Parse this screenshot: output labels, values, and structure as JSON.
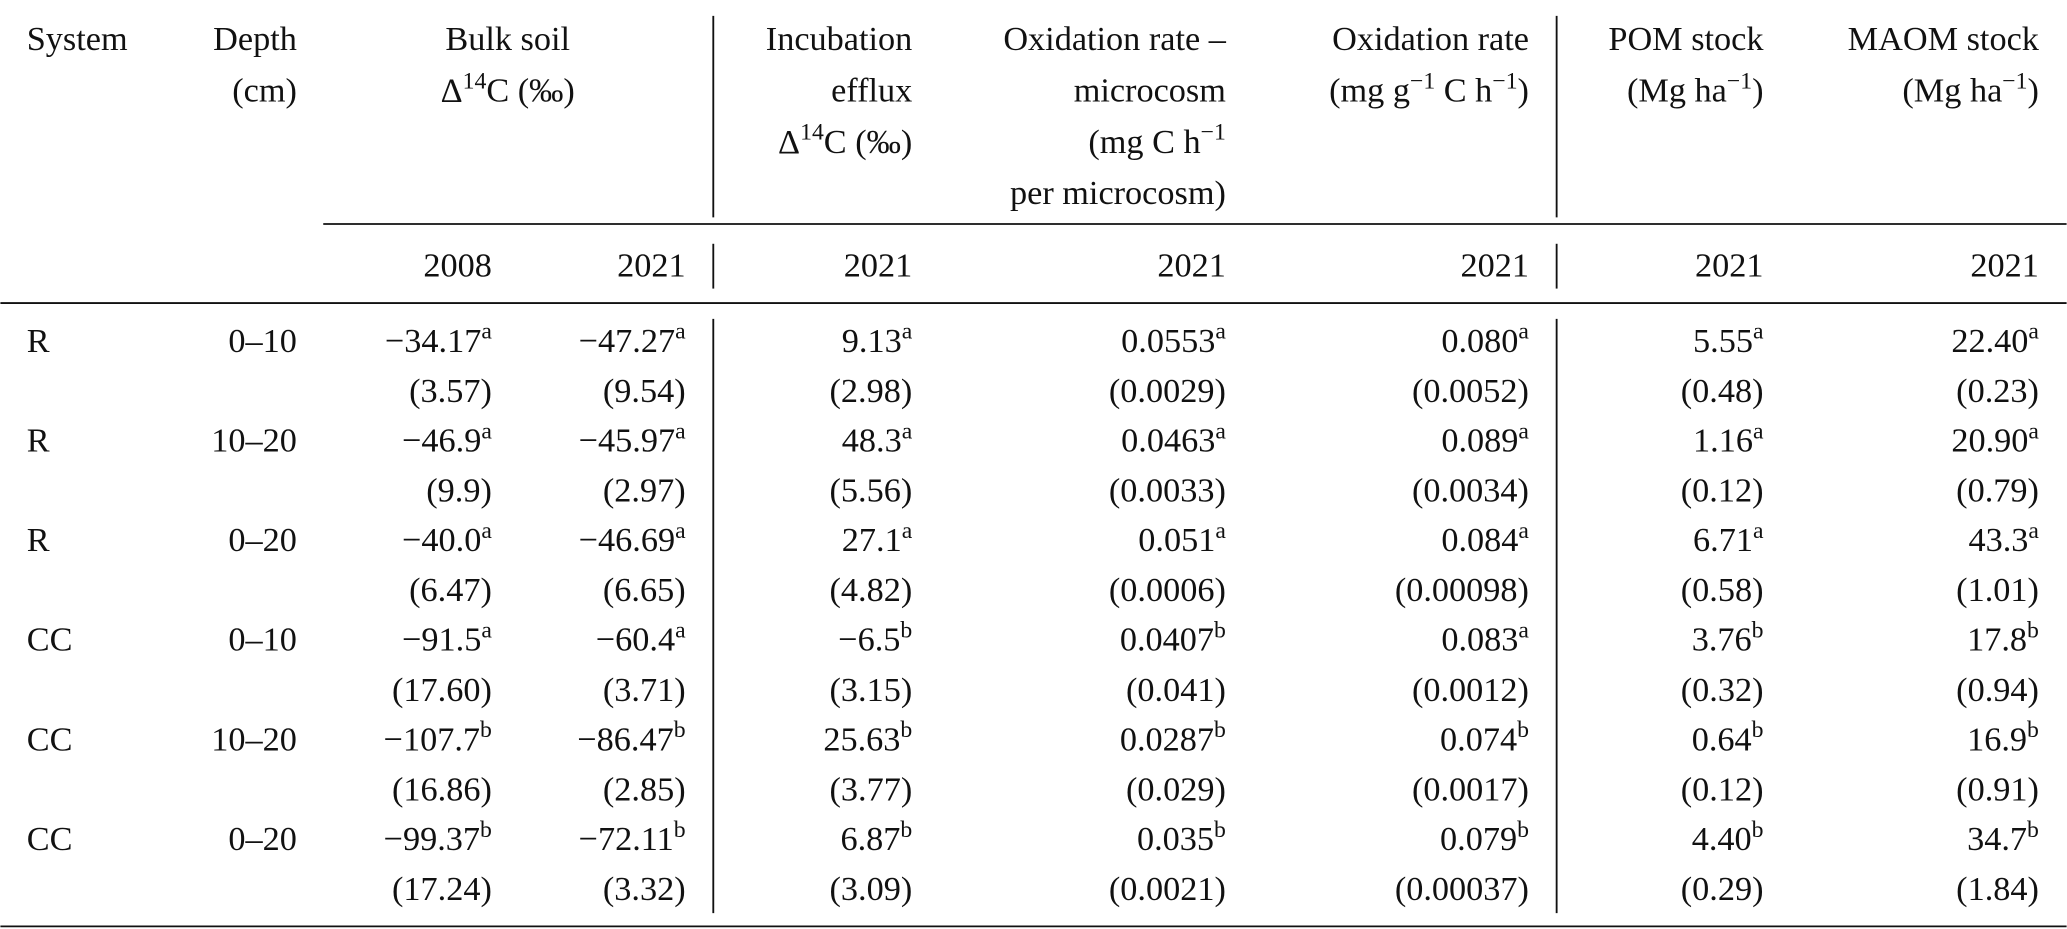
{
  "table": {
    "columns": [
      {
        "lines": [
          [
            "System"
          ]
        ]
      },
      {
        "lines": [
          [
            "Depth"
          ],
          [
            "(cm)"
          ]
        ]
      },
      {
        "lines": [
          [
            "Bulk soil"
          ],
          [
            "Δ",
            {
              "sup": "14"
            },
            "C (‰)"
          ]
        ]
      },
      {
        "lines": [
          [
            "Incubation"
          ],
          [
            "efflux"
          ],
          [
            "Δ",
            {
              "sup": "14"
            },
            "C (‰)"
          ]
        ]
      },
      {
        "lines": [
          [
            "Oxidation rate –"
          ],
          [
            "microcosm"
          ],
          [
            "(mg C h",
            {
              "sup": "−1"
            }
          ],
          [
            "per microcosm)"
          ]
        ]
      },
      {
        "lines": [
          [
            "Oxidation rate"
          ],
          [
            "(mg g",
            {
              "sup": "−1"
            },
            " C h",
            {
              "sup": "−1"
            },
            ")"
          ]
        ]
      },
      {
        "lines": [
          [
            "POM stock"
          ],
          [
            "(Mg ha",
            {
              "sup": "−1"
            },
            ")"
          ]
        ]
      },
      {
        "lines": [
          [
            "MAOM stock"
          ],
          [
            "(Mg ha",
            {
              "sup": "−1"
            },
            ")"
          ]
        ]
      }
    ],
    "years": [
      "2008",
      "2021",
      "2021",
      "2021",
      "2021",
      "2021",
      "2021"
    ],
    "rows": [
      {
        "system": "R",
        "depth": "0–10",
        "cells": [
          {
            "value": "−34.17",
            "sup": "a",
            "se": "(3.57)"
          },
          {
            "value": "−47.27",
            "sup": "a",
            "se": "(9.54)"
          },
          {
            "value": "9.13",
            "sup": "a",
            "se": "(2.98)"
          },
          {
            "value": "0.0553",
            "sup": "a",
            "se": "(0.0029)"
          },
          {
            "value": "0.080",
            "sup": "a",
            "se": "(0.0052)"
          },
          {
            "value": "5.55",
            "sup": "a",
            "se": "(0.48)"
          },
          {
            "value": "22.40",
            "sup": "a",
            "se": "(0.23)"
          }
        ]
      },
      {
        "system": "R",
        "depth": "10–20",
        "cells": [
          {
            "value": "−46.9",
            "sup": "a",
            "se": "(9.9)"
          },
          {
            "value": "−45.97",
            "sup": "a",
            "se": "(2.97)"
          },
          {
            "value": "48.3",
            "sup": "a",
            "se": "(5.56)"
          },
          {
            "value": "0.0463",
            "sup": "a",
            "se": "(0.0033)"
          },
          {
            "value": "0.089",
            "sup": "a",
            "se": "(0.0034)"
          },
          {
            "value": "1.16",
            "sup": "a",
            "se": "(0.12)"
          },
          {
            "value": "20.90",
            "sup": "a",
            "se": "(0.79)"
          }
        ]
      },
      {
        "system": "R",
        "depth": "0–20",
        "cells": [
          {
            "value": "−40.0",
            "sup": "a",
            "se": "(6.47)"
          },
          {
            "value": "−46.69",
            "sup": "a",
            "se": "(6.65)"
          },
          {
            "value": "27.1",
            "sup": "a",
            "se": "(4.82)"
          },
          {
            "value": "0.051",
            "sup": "a",
            "se": "(0.0006)"
          },
          {
            "value": "0.084",
            "sup": "a",
            "se": "(0.00098)"
          },
          {
            "value": "6.71",
            "sup": "a",
            "se": "(0.58)"
          },
          {
            "value": "43.3",
            "sup": "a",
            "se": "(1.01)"
          }
        ]
      },
      {
        "system": "CC",
        "depth": "0–10",
        "cells": [
          {
            "value": "−91.5",
            "sup": "a",
            "se": "(17.60)"
          },
          {
            "value": "−60.4",
            "sup": "a",
            "se": "(3.71)"
          },
          {
            "value": "−6.5",
            "sup": "b",
            "se": "(3.15)"
          },
          {
            "value": "0.0407",
            "sup": "b",
            "se": "(0.041)"
          },
          {
            "value": "0.083",
            "sup": "a",
            "se": "(0.0012)"
          },
          {
            "value": "3.76",
            "sup": "b",
            "se": "(0.32)"
          },
          {
            "value": "17.8",
            "sup": "b",
            "se": "(0.94)"
          }
        ]
      },
      {
        "system": "CC",
        "depth": "10–20",
        "cells": [
          {
            "value": "−107.7",
            "sup": "b",
            "se": "(16.86)"
          },
          {
            "value": "−86.47",
            "sup": "b",
            "se": "(2.85)"
          },
          {
            "value": "25.63",
            "sup": "b",
            "se": "(3.77)"
          },
          {
            "value": "0.0287",
            "sup": "b",
            "se": "(0.029)"
          },
          {
            "value": "0.074",
            "sup": "b",
            "se": "(0.0017)"
          },
          {
            "value": "0.64",
            "sup": "b",
            "se": "(0.12)"
          },
          {
            "value": "16.9",
            "sup": "b",
            "se": "(0.91)"
          }
        ]
      },
      {
        "system": "CC",
        "depth": "0–20",
        "cells": [
          {
            "value": "−99.37",
            "sup": "b",
            "se": "(17.24)"
          },
          {
            "value": "−72.11",
            "sup": "b",
            "se": "(3.32)"
          },
          {
            "value": "6.87",
            "sup": "b",
            "se": "(3.09)"
          },
          {
            "value": "0.035",
            "sup": "b",
            "se": "(0.0021)"
          },
          {
            "value": "0.079",
            "sup": "b",
            "se": "(0.00037)"
          },
          {
            "value": "4.40",
            "sup": "b",
            "se": "(0.29)"
          },
          {
            "value": "34.7",
            "sup": "b",
            "se": "(1.84)"
          }
        ]
      }
    ]
  }
}
